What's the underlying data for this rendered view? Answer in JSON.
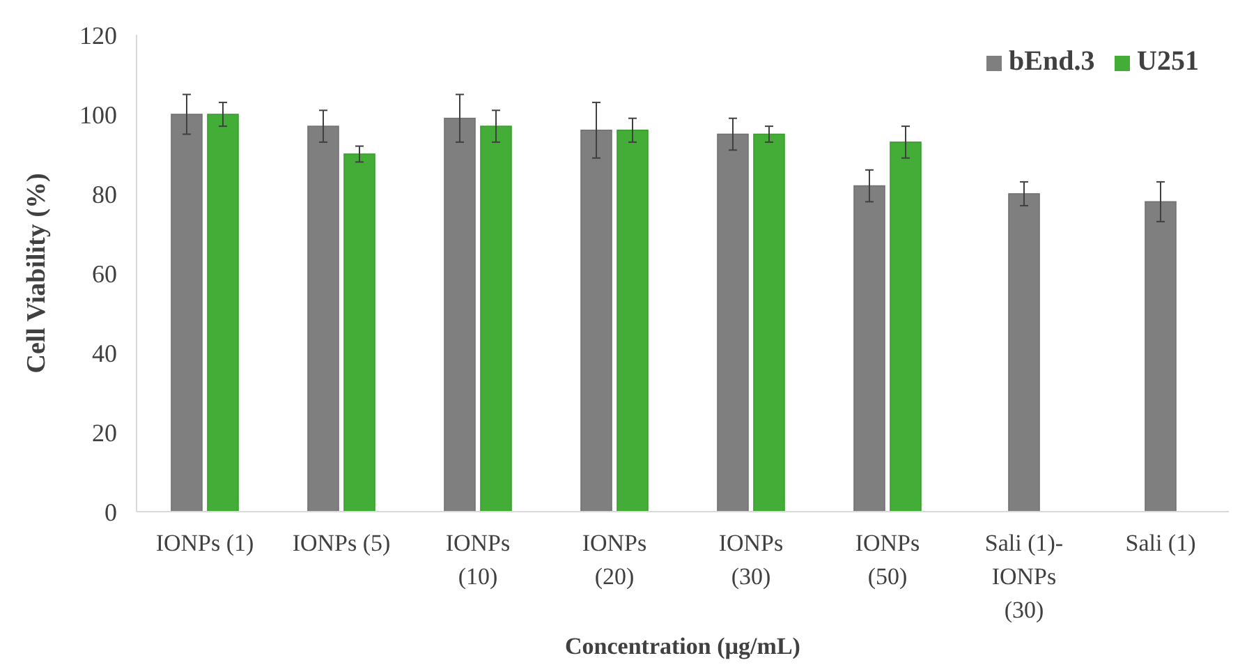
{
  "chart_data": {
    "type": "bar",
    "xlabel": "Concentration (µg/mL)",
    "ylabel": "Cell Viability (%)",
    "categories": [
      "IONPs (1)",
      "IONPs (5)",
      "IONPs\n(10)",
      "IONPs\n(20)",
      "IONPs\n(30)",
      "IONPs\n(50)",
      "Sali (1)-\nIONPs\n(30)",
      "Sali (1)"
    ],
    "series": [
      {
        "name": "bEnd.3",
        "color": "#7f7f7f",
        "values": [
          100,
          97,
          99,
          96,
          95,
          82,
          80,
          78
        ],
        "errors": [
          5,
          4,
          6,
          7,
          4,
          4,
          3,
          5
        ]
      },
      {
        "name": "U251",
        "color": "#44ad38",
        "values": [
          100,
          90,
          97,
          96,
          95,
          93,
          null,
          null
        ],
        "errors": [
          3,
          2,
          4,
          3,
          2,
          4,
          null,
          null
        ]
      }
    ],
    "ylim": [
      0,
      120
    ],
    "yticks": [
      0,
      20,
      40,
      60,
      80,
      100,
      120
    ],
    "grid": false,
    "legend": "top right"
  }
}
